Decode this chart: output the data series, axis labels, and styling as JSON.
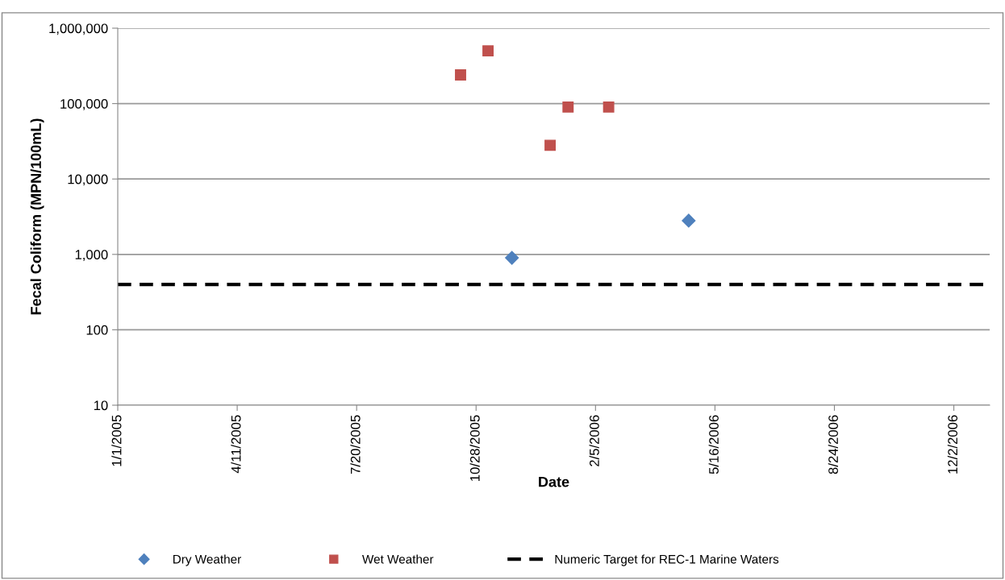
{
  "chart_data": {
    "type": "scatter",
    "xlabel": "Date",
    "ylabel": "Fecal Coliform (MPN/100mL)",
    "log": true,
    "xlim": [
      "2005-01-01",
      "2007-01-01"
    ],
    "xticks": [
      {
        "value": "2005-01-01",
        "label": "1/1/2005"
      },
      {
        "value": "2005-04-11",
        "label": "4/11/2005"
      },
      {
        "value": "2005-07-20",
        "label": "7/20/2005"
      },
      {
        "value": "2005-10-28",
        "label": "10/28/2005"
      },
      {
        "value": "2006-02-05",
        "label": "2/5/2006"
      },
      {
        "value": "2006-05-16",
        "label": "5/16/2006"
      },
      {
        "value": "2006-08-24",
        "label": "8/24/2006"
      },
      {
        "value": "2006-12-02",
        "label": "12/2/2006"
      }
    ],
    "ylim": [
      10,
      1000000
    ],
    "yticks": [
      {
        "value": 10,
        "label": "10"
      },
      {
        "value": 100,
        "label": "100"
      },
      {
        "value": 1000,
        "label": "1,000"
      },
      {
        "value": 10000,
        "label": "10,000"
      },
      {
        "value": 100000,
        "label": "100,000"
      },
      {
        "value": 1000000,
        "label": "1,000,000"
      }
    ],
    "grid": "y",
    "legend": "bottom",
    "series": [
      {
        "name": "Dry Weather",
        "color": "#4f81bd",
        "marker": "diamond",
        "x": [
          "2005-11-27",
          "2006-04-24"
        ],
        "values": [
          900,
          2800
        ]
      },
      {
        "name": "Wet Weather",
        "color": "#c0504d",
        "marker": "square",
        "x": [
          "2005-10-15",
          "2005-11-07",
          "2005-12-29",
          "2006-01-13",
          "2006-02-16"
        ],
        "values": [
          240000,
          500000,
          28000,
          90000,
          90000
        ]
      }
    ],
    "ref_lines": [
      {
        "axis": "y",
        "value": 400,
        "label": "Numeric Target for REC-1 Marine Waters",
        "color": "#000000",
        "line_style": "dashed"
      }
    ]
  }
}
